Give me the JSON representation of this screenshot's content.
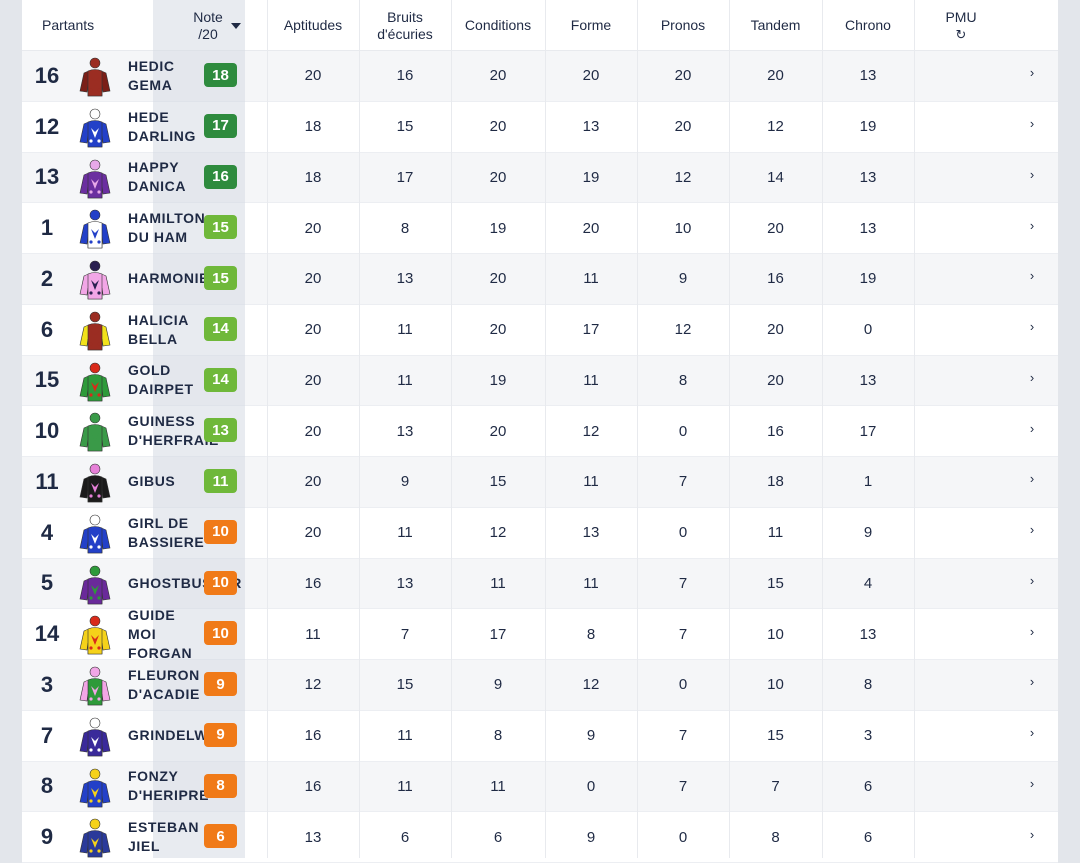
{
  "header": {
    "partants": "Partants",
    "note_line1": "Note",
    "note_line2": "/20",
    "aptitudes": "Aptitudes",
    "bruits_line1": "Bruits",
    "bruits_line2": "d'écuries",
    "conditions": "Conditions",
    "forme": "Forme",
    "pronos": "Pronos",
    "tandem": "Tandem",
    "chrono": "Chrono",
    "pmu": "PMU",
    "refresh_icon": "↻",
    "sort_icon": "caret-down-icon"
  },
  "colors": {
    "note_dark_green": "#2e8b3e",
    "note_light_green": "#6fb83a",
    "note_orange": "#f07a18"
  },
  "rows": [
    {
      "num": "16",
      "name": "HEDIC\nGEMA",
      "note": "18",
      "grade": "dark",
      "silk": [
        "#9b2d22",
        "#9b2d22",
        "#7a1f18"
      ],
      "scores": [
        "20",
        "16",
        "20",
        "20",
        "20",
        "20",
        "13"
      ]
    },
    {
      "num": "12",
      "name": "HEDE\nDARLING",
      "note": "17",
      "grade": "dark",
      "silk": [
        "#2340c8",
        "#ffffff",
        "#2340c8"
      ],
      "scores": [
        "18",
        "15",
        "20",
        "13",
        "20",
        "12",
        "19"
      ]
    },
    {
      "num": "13",
      "name": "HAPPY\nDANICA",
      "note": "16",
      "grade": "dark",
      "silk": [
        "#6b2fa0",
        "#e7a9e8",
        "#6b2fa0"
      ],
      "scores": [
        "18",
        "17",
        "20",
        "19",
        "12",
        "14",
        "13"
      ]
    },
    {
      "num": "1",
      "name": "HAMILTON\nDU HAM",
      "note": "15",
      "grade": "light",
      "silk": [
        "#ffffff",
        "#2340c8",
        "#2340c8"
      ],
      "scores": [
        "20",
        "8",
        "19",
        "20",
        "10",
        "20",
        "13"
      ]
    },
    {
      "num": "2",
      "name": "HARMONIE",
      "note": "15",
      "grade": "light",
      "silk": [
        "#f2a6e6",
        "#2a2050",
        "#f2a6e6"
      ],
      "scores": [
        "20",
        "13",
        "20",
        "11",
        "9",
        "16",
        "19"
      ]
    },
    {
      "num": "6",
      "name": "HALICIA\nBELLA",
      "note": "14",
      "grade": "light",
      "silk": [
        "#9b2d22",
        "#9b2d22",
        "#f2e21a"
      ],
      "scores": [
        "20",
        "11",
        "20",
        "17",
        "12",
        "20",
        "0"
      ]
    },
    {
      "num": "15",
      "name": "GOLD\nDAIRPET",
      "note": "14",
      "grade": "light",
      "silk": [
        "#2e9a3a",
        "#d92a1a",
        "#2e9a3a"
      ],
      "scores": [
        "20",
        "11",
        "19",
        "11",
        "8",
        "20",
        "13"
      ]
    },
    {
      "num": "10",
      "name": "GUINESS\nD'HERFRAIE",
      "note": "13",
      "grade": "light",
      "silk": [
        "#3a9a48",
        "#3a9a48",
        "#3a9a48"
      ],
      "scores": [
        "20",
        "13",
        "20",
        "12",
        "0",
        "16",
        "17"
      ]
    },
    {
      "num": "11",
      "name": "GIBUS",
      "note": "11",
      "grade": "light",
      "silk": [
        "#1b1b1b",
        "#e680d8",
        "#1b1b1b"
      ],
      "scores": [
        "20",
        "9",
        "15",
        "11",
        "7",
        "18",
        "1"
      ]
    },
    {
      "num": "4",
      "name": "GIRL DE\nBASSIERE",
      "note": "10",
      "grade": "orange",
      "silk": [
        "#2340c8",
        "#ffffff",
        "#2340c8"
      ],
      "scores": [
        "20",
        "11",
        "12",
        "13",
        "0",
        "11",
        "9"
      ]
    },
    {
      "num": "5",
      "name": "GHOSTBUSTER",
      "note": "10",
      "grade": "orange",
      "silk": [
        "#6a2a9a",
        "#2e9a3a",
        "#6a2a9a"
      ],
      "scores": [
        "16",
        "13",
        "11",
        "11",
        "7",
        "15",
        "4"
      ]
    },
    {
      "num": "14",
      "name": "GUIDE\nMOI\nFORGAN",
      "note": "10",
      "grade": "orange",
      "silk": [
        "#f5d21a",
        "#d92a1a",
        "#f5d21a"
      ],
      "scores": [
        "11",
        "7",
        "17",
        "8",
        "7",
        "10",
        "13"
      ]
    },
    {
      "num": "3",
      "name": "FLEURON\nD'ACADIE",
      "note": "9",
      "grade": "orange",
      "silk": [
        "#2e9a3a",
        "#f2a6e6",
        "#f2a6e6"
      ],
      "scores": [
        "12",
        "15",
        "9",
        "12",
        "0",
        "10",
        "8"
      ]
    },
    {
      "num": "7",
      "name": "GRINDELWALD",
      "note": "9",
      "grade": "orange",
      "silk": [
        "#3a2a9a",
        "#ffffff",
        "#3a2a9a"
      ],
      "scores": [
        "16",
        "11",
        "8",
        "9",
        "7",
        "15",
        "3"
      ]
    },
    {
      "num": "8",
      "name": "FONZY\nD'HERIPRE",
      "note": "8",
      "grade": "orange",
      "silk": [
        "#2340c8",
        "#f5d21a",
        "#2340c8"
      ],
      "scores": [
        "16",
        "11",
        "11",
        "0",
        "7",
        "7",
        "6"
      ]
    },
    {
      "num": "9",
      "name": "ESTEBAN\nJIEL",
      "note": "6",
      "grade": "orange",
      "silk": [
        "#2a3a9a",
        "#f5d21a",
        "#2a3a9a"
      ],
      "scores": [
        "13",
        "6",
        "6",
        "9",
        "0",
        "8",
        "6"
      ]
    }
  ]
}
